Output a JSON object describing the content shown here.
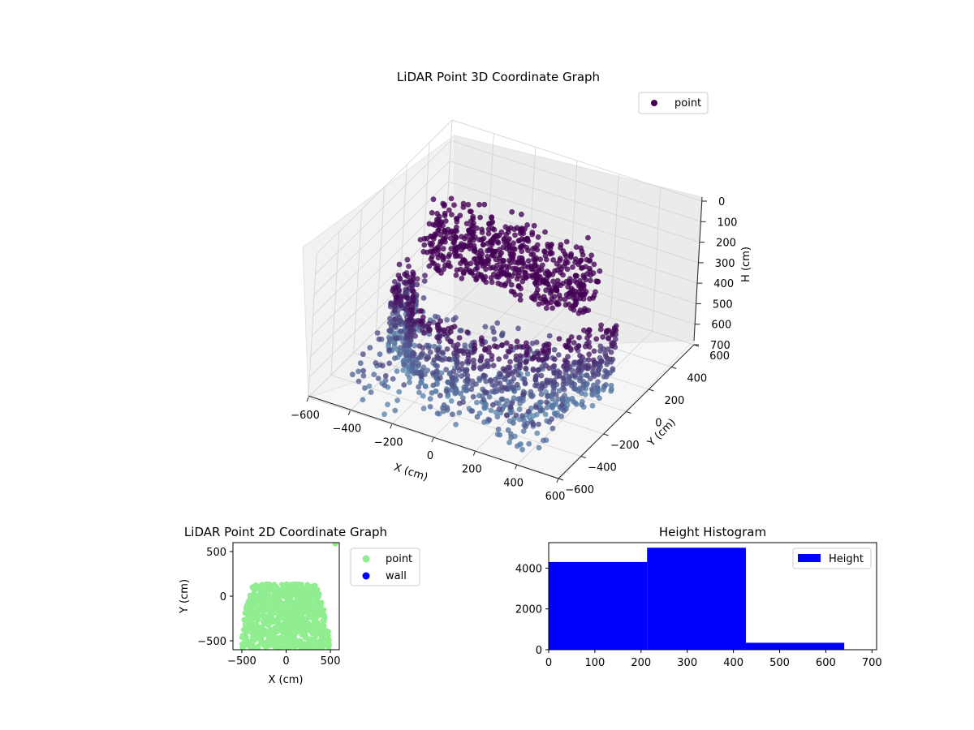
{
  "colors": {
    "point3d_dark": "#440154",
    "point3d_light": "#5a8ab0",
    "point2d": "#90ee90",
    "wall": "#0000ff",
    "hist": "#0000ff",
    "pane": "#f2f2f2",
    "grid": "#d3d3d3"
  },
  "chart_data": [
    {
      "type": "scatter",
      "projection": "3d",
      "title": "LiDAR Point 3D Coordinate Graph",
      "xlabel": "X (cm)",
      "ylabel": "Y (cm)",
      "zlabel": "H (cm)",
      "xlim": [
        -600,
        600
      ],
      "ylim": [
        -600,
        600
      ],
      "zlim": [
        700,
        0
      ],
      "z_inverted": true,
      "xticks": [
        "−600",
        "−400",
        "−200",
        "0",
        "200",
        "400",
        "600"
      ],
      "yticks": [
        "−600",
        "−400",
        "−200",
        "0",
        "200",
        "400",
        "600"
      ],
      "zticks": [
        "0",
        "100",
        "200",
        "300",
        "400",
        "500",
        "600",
        "700"
      ],
      "legend": {
        "position": "upper right",
        "entries": [
          "point"
        ]
      },
      "series": [
        {
          "name": "point",
          "colormap": "viridis-like (dark purple at high H, blue-grey at low H)",
          "regions": [
            {
              "shape": "ring",
              "center": [
                -20,
                -100
              ],
              "radius_range": [
                420,
                520
              ],
              "h_range": [
                360,
                700
              ]
            },
            {
              "shape": "floor",
              "x_range": [
                -480,
                480
              ],
              "y_range": [
                -560,
                120
              ],
              "h_range": [
                500,
                700
              ]
            },
            {
              "shape": "block",
              "x_range": [
                -400,
                400
              ],
              "y_range": [
                -50,
                130
              ],
              "h_range": [
                0,
                300
              ]
            }
          ]
        }
      ]
    },
    {
      "type": "scatter",
      "title": "LiDAR Point 2D Coordinate Graph",
      "xlabel": "X (cm)",
      "ylabel": "Y (cm)",
      "xlim": [
        -600,
        600
      ],
      "ylim": [
        -600,
        600
      ],
      "xticks": [
        "−500",
        "0",
        "500"
      ],
      "yticks": [
        "−500",
        "0",
        "500"
      ],
      "legend": {
        "position": "outside right",
        "entries": [
          "point",
          "wall"
        ]
      },
      "series": [
        {
          "name": "point",
          "region": {
            "x_range_bottom": [
              -510,
              490
            ],
            "x_range_top": [
              -370,
              330
            ],
            "y_range": [
              -590,
              140
            ]
          }
        },
        {
          "name": "wall",
          "points": []
        },
        {
          "name": "point-outlier",
          "points": [
            [
              555,
              590
            ]
          ]
        }
      ]
    },
    {
      "type": "bar",
      "subtype": "histogram",
      "title": "Height Histogram",
      "xlim": [
        0,
        710
      ],
      "ylim": [
        0,
        5250
      ],
      "xticks": [
        "0",
        "100",
        "200",
        "300",
        "400",
        "500",
        "600",
        "700"
      ],
      "yticks": [
        "0",
        "2000",
        "4000"
      ],
      "legend": {
        "position": "upper right",
        "entries": [
          "Height"
        ]
      },
      "bins": [
        {
          "x0": 0,
          "x1": 213,
          "count": 4300
        },
        {
          "x0": 213,
          "x1": 427,
          "count": 5000
        },
        {
          "x0": 427,
          "x1": 640,
          "count": 340
        }
      ]
    }
  ]
}
